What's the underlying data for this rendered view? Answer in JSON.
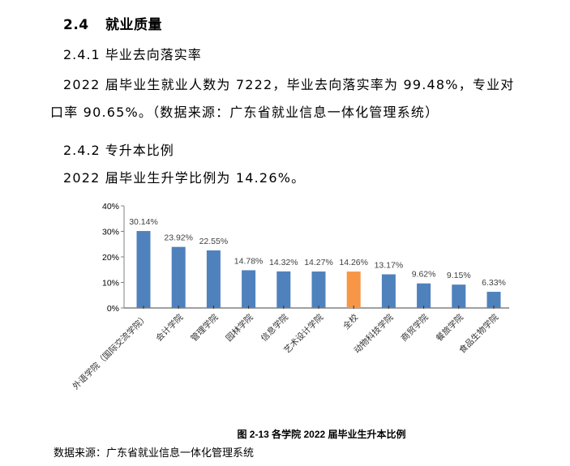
{
  "section": {
    "number": "2.4",
    "title": "就业质量"
  },
  "subsection_1": {
    "heading": "2.4.1 毕业去向落实率",
    "paragraph_line1": "2022 届毕业生就业人数为 7222，毕业去向落实率为 99.48%，专业对",
    "paragraph_line2": "口率 90.65%。（数据来源：广东省就业信息一体化管理系统）"
  },
  "subsection_2": {
    "heading": "2.4.2 专升本比例",
    "paragraph": "2022 届毕业生升学比例为 14.26%。"
  },
  "figure": {
    "caption": "图  2-13   各学院 2022 届毕业生升本比例",
    "source": "数据来源：广东省就业信息一体化管理系统"
  },
  "colors": {
    "bar_default": "#4f81bd",
    "bar_highlight": "#f79646",
    "axis": "#808080",
    "label_text": "#404040"
  },
  "chart_data": {
    "type": "bar",
    "title": "各学院 2022 届毕业生升本比例",
    "xlabel": "",
    "ylabel": "",
    "ylim": [
      0,
      40
    ],
    "yticks": [
      "0%",
      "10%",
      "20%",
      "30%",
      "40%"
    ],
    "grid": false,
    "legend": "none",
    "categories": [
      "外语学院（国际交流学院）",
      "会计学院",
      "管理学院",
      "园林学院",
      "信息学院",
      "艺术设计学院",
      "全校",
      "动物科技学院",
      "商贸学院",
      "餐旅学院",
      "食品生物学院"
    ],
    "values": [
      30.14,
      23.92,
      22.55,
      14.78,
      14.32,
      14.27,
      14.26,
      13.17,
      9.62,
      9.15,
      6.33
    ],
    "data_labels": [
      "30.14%",
      "23.92%",
      "22.55%",
      "14.78%",
      "14.32%",
      "14.27%",
      "14.26%",
      "13.17%",
      "9.62%",
      "9.15%",
      "6.33%"
    ],
    "highlight_index": 6
  }
}
